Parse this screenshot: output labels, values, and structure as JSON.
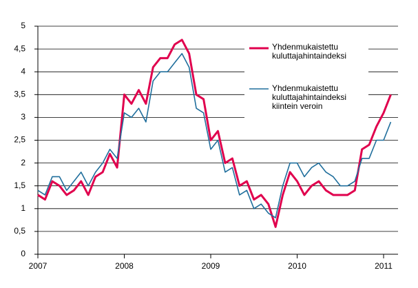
{
  "chart_data": {
    "type": "line",
    "x": [
      2007,
      2007.083,
      2007.167,
      2007.25,
      2007.333,
      2007.417,
      2007.5,
      2007.583,
      2007.667,
      2007.75,
      2007.833,
      2007.917,
      2008,
      2008.083,
      2008.167,
      2008.25,
      2008.333,
      2008.417,
      2008.5,
      2008.583,
      2008.667,
      2008.75,
      2008.833,
      2008.917,
      2009,
      2009.083,
      2009.167,
      2009.25,
      2009.333,
      2009.417,
      2009.5,
      2009.583,
      2009.667,
      2009.75,
      2009.833,
      2009.917,
      2010,
      2010.083,
      2010.167,
      2010.25,
      2010.333,
      2010.417,
      2010.5,
      2010.583,
      2010.667,
      2010.75,
      2010.833,
      2010.917,
      2011,
      2011.083
    ],
    "series": [
      {
        "name": "Yhdenmukaistettu kuluttajahintaindeksi",
        "color": "#e0004d",
        "width": 3,
        "values": [
          1.3,
          1.2,
          1.6,
          1.5,
          1.3,
          1.4,
          1.6,
          1.3,
          1.7,
          1.8,
          2.2,
          1.9,
          3.5,
          3.3,
          3.6,
          3.3,
          4.1,
          4.3,
          4.3,
          4.6,
          4.7,
          4.4,
          3.5,
          3.4,
          2.5,
          2.7,
          2.0,
          2.1,
          1.5,
          1.6,
          1.2,
          1.3,
          1.1,
          0.6,
          1.3,
          1.8,
          1.6,
          1.3,
          1.5,
          1.6,
          1.4,
          1.3,
          1.3,
          1.3,
          1.4,
          2.3,
          2.4,
          2.8,
          3.1,
          3.5
        ]
      },
      {
        "name": "Yhdenmukaistettu kuluttajahintaindeksi kiintein veroin",
        "color": "#1f6e9c",
        "width": 1.6,
        "values": [
          1.4,
          1.3,
          1.7,
          1.7,
          1.4,
          1.6,
          1.8,
          1.5,
          1.8,
          2.0,
          2.3,
          2.1,
          3.1,
          3.0,
          3.2,
          2.9,
          3.8,
          4.0,
          4.0,
          4.2,
          4.4,
          4.1,
          3.2,
          3.1,
          2.3,
          2.5,
          1.8,
          1.9,
          1.3,
          1.4,
          1.0,
          1.1,
          0.9,
          0.8,
          1.5,
          2.0,
          2.0,
          1.7,
          1.9,
          2.0,
          1.8,
          1.7,
          1.5,
          1.5,
          1.6,
          2.1,
          2.1,
          2.5,
          2.5,
          2.9
        ]
      }
    ],
    "xlim": [
      2007,
      2011.167
    ],
    "xticks": [
      2007,
      2008,
      2009,
      2010,
      2011
    ],
    "ylim": [
      0,
      5
    ],
    "yticks": [
      0,
      {
        "value": 0.5,
        "label": "0,5"
      },
      1,
      {
        "value": 1.5,
        "label": "1,5"
      },
      2,
      {
        "value": 2.5,
        "label": "2,5"
      },
      3,
      {
        "value": 3.5,
        "label": "3,5"
      },
      4,
      {
        "value": 4.5,
        "label": "4,5"
      },
      5
    ],
    "grid": true
  }
}
